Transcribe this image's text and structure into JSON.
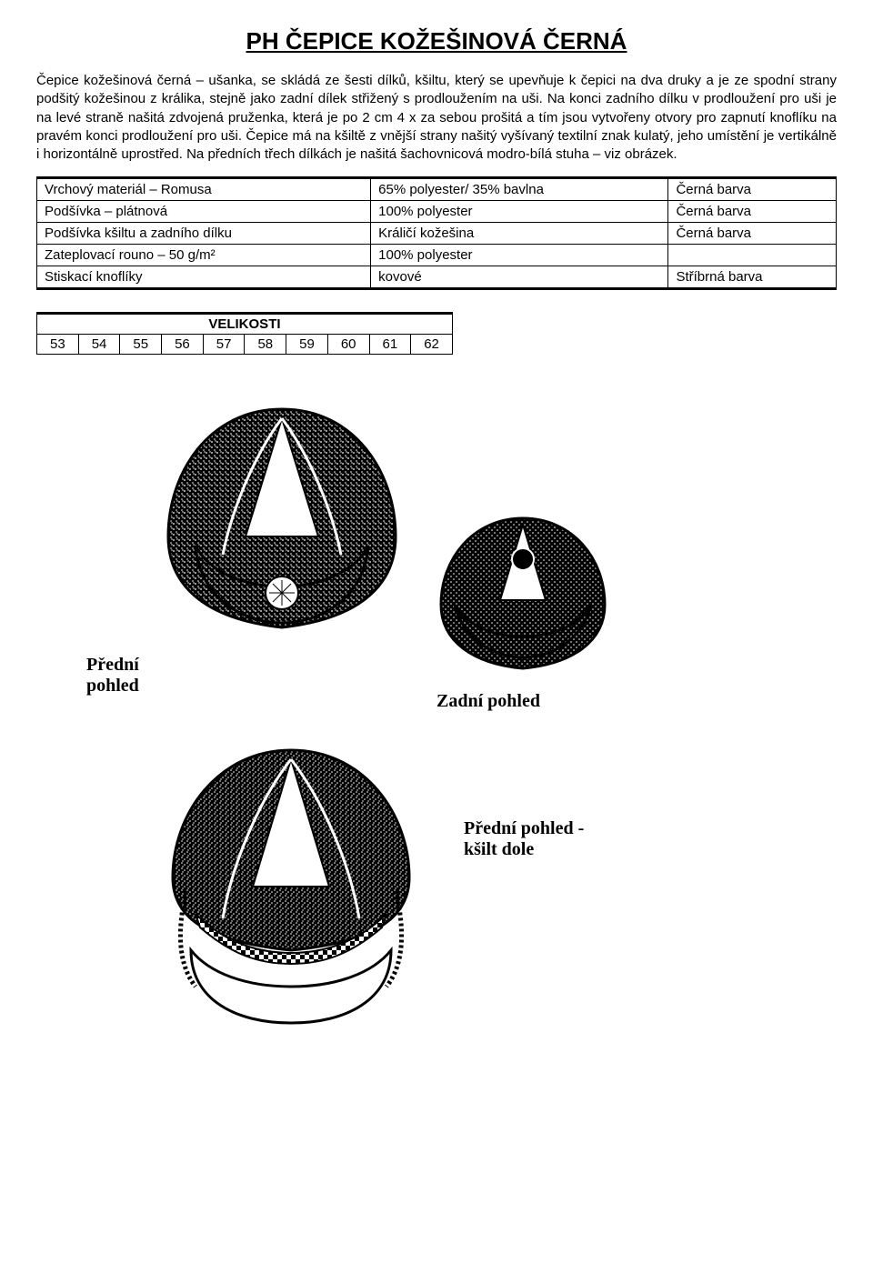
{
  "title": "PH ČEPICE KOŽEŠINOVÁ ČERNÁ",
  "description": "Čepice kožešinová černá – ušanka, se skládá ze šesti dílků, kšiltu, který se upevňuje k čepici na dva druky a je ze spodní strany podšitý kožešinou z králika, stejně jako zadní dílek střižený s prodloužením na uši. Na konci zadního dílku v prodloužení pro uši je na levé straně našitá zdvojená pruženka, která je po 2 cm 4 x za sebou prošitá a tím jsou vytvořeny otvory pro zapnutí knoflíku na pravém konci prodloužení pro uši.  Čepice má na kšiltě z vnější strany našitý vyšívaný textilní znak kulatý, jeho umístění je vertikálně i horizontálně uprostřed. Na předních třech dílkách je našitá šachovnicová modro-bílá stuha – viz obrázek.",
  "spec_table": {
    "rows": [
      [
        "Vrchový materiál – Romusa",
        "65% polyester/ 35% bavlna",
        "Černá barva"
      ],
      [
        "Podšívka – plátnová",
        "100% polyester",
        "Černá barva"
      ],
      [
        "Podšívka kšiltu a zadního dílku",
        "Králičí kožešina",
        "Černá barva"
      ],
      [
        "Zateplovací rouno – 50 g/m²",
        "100% polyester",
        ""
      ],
      [
        "Stiskací knoflíky",
        "kovové",
        "Stříbrná barva"
      ]
    ]
  },
  "sizes": {
    "header": "VELIKOSTI",
    "values": [
      "53",
      "54",
      "55",
      "56",
      "57",
      "58",
      "59",
      "60",
      "61",
      "62"
    ]
  },
  "labels": {
    "front": "Přední\npohled",
    "back": "Zadní pohled",
    "down": "Přední pohled -\nkšilt dole"
  },
  "colors": {
    "ink": "#000000",
    "bg": "#ffffff"
  }
}
